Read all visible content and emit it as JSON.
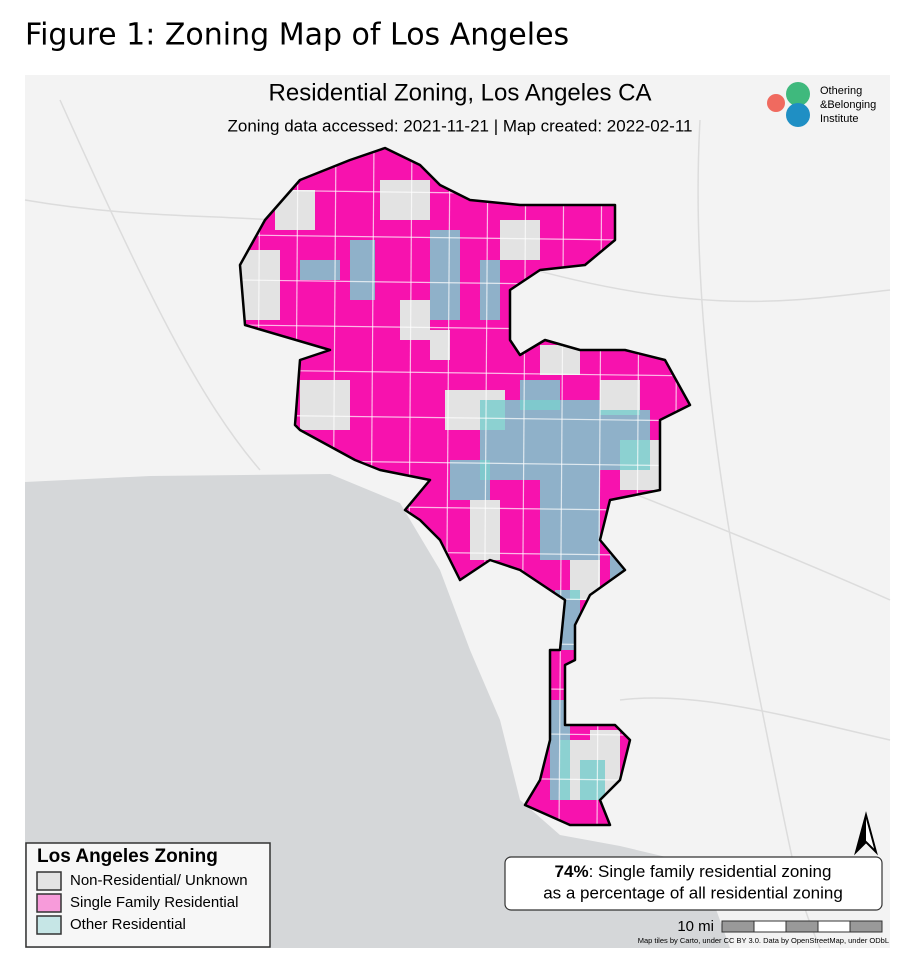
{
  "figure_title": "Figure 1: Zoning Map of Los Angeles",
  "map": {
    "title": "Residential Zoning, Los Angeles CA",
    "subtitle": "Zoning data accessed: 2021-11-21 | Map created: 2022-02-11",
    "logo": [
      "Othering",
      "&Belonging",
      "Institute"
    ],
    "legend": {
      "title": "Los Angeles Zoning",
      "items": [
        {
          "label": "Non-Residential/ Unknown",
          "color": "#e3e3e3"
        },
        {
          "label": "Single Family Residential",
          "color": "#f712ae"
        },
        {
          "label": "Other Residential",
          "color": "#7dcece"
        }
      ]
    },
    "callout": {
      "highlight": "74%",
      "text_lines": [
        ": Single family residential zoning",
        "as a percentage of all residential zoning"
      ]
    },
    "scale_label": "10 mi",
    "attribution": "Map tiles by Carto, under CC BY 3.0. Data by OpenStreetMap, under ODbL"
  }
}
